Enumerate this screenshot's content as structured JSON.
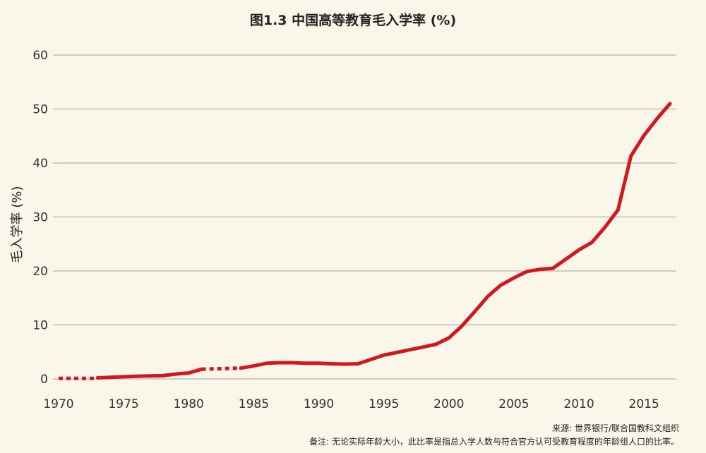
{
  "chart_data": {
    "type": "line",
    "title": "图1.3 中国高等教育毛入学率 (%)",
    "xlabel": "",
    "ylabel": "毛入学率 (%)",
    "xlim": [
      1970,
      2017
    ],
    "ylim": [
      0,
      60
    ],
    "x_ticks": [
      1970,
      1975,
      1980,
      1985,
      1990,
      1995,
      2000,
      2005,
      2010,
      2015
    ],
    "y_ticks": [
      0,
      10,
      20,
      30,
      40,
      50,
      60
    ],
    "grid": "horizontal",
    "line_color": "#d0191e",
    "grid_color": "#b5b2aa",
    "series": [
      {
        "segments": [
          {
            "style": "dashed",
            "x": [
              1970,
              1973
            ],
            "y": [
              0.1,
              0.1
            ]
          },
          {
            "style": "solid",
            "x": [
              1973,
              1974,
              1975,
              1976,
              1977,
              1978,
              1979,
              1980,
              1981
            ],
            "y": [
              0.2,
              0.3,
              0.4,
              0.5,
              0.55,
              0.6,
              0.9,
              1.1,
              1.8
            ]
          },
          {
            "style": "dashed",
            "x": [
              1981,
              1984
            ],
            "y": [
              1.8,
              2.0
            ]
          },
          {
            "style": "solid",
            "x": [
              1984,
              1985,
              1986,
              1987,
              1988,
              1989,
              1990,
              1991,
              1992,
              1993,
              1994,
              1995,
              1996,
              1997,
              1998,
              1999,
              2000,
              2001,
              2002,
              2003,
              2004,
              2005,
              2006,
              2007,
              2008,
              2009,
              2010,
              2011,
              2012,
              2013,
              2014,
              2015,
              2016,
              2017
            ],
            "y": [
              2.0,
              2.4,
              2.9,
              3.0,
              3.0,
              2.9,
              2.9,
              2.8,
              2.75,
              2.8,
              3.6,
              4.4,
              4.9,
              5.4,
              5.9,
              6.4,
              7.6,
              9.8,
              12.5,
              15.3,
              17.4,
              18.7,
              19.9,
              20.3,
              20.5,
              22.2,
              23.9,
              25.3,
              28.1,
              31.3,
              41.3,
              45.1,
              48.2,
              51.0
            ]
          }
        ]
      }
    ],
    "source": "来源: 世界银行/联合国教科文组织",
    "note": "备注: 无论实际年龄大小，此比率是指总入学人数与符合官方认可受教育程度的年龄组人口的比率。"
  }
}
